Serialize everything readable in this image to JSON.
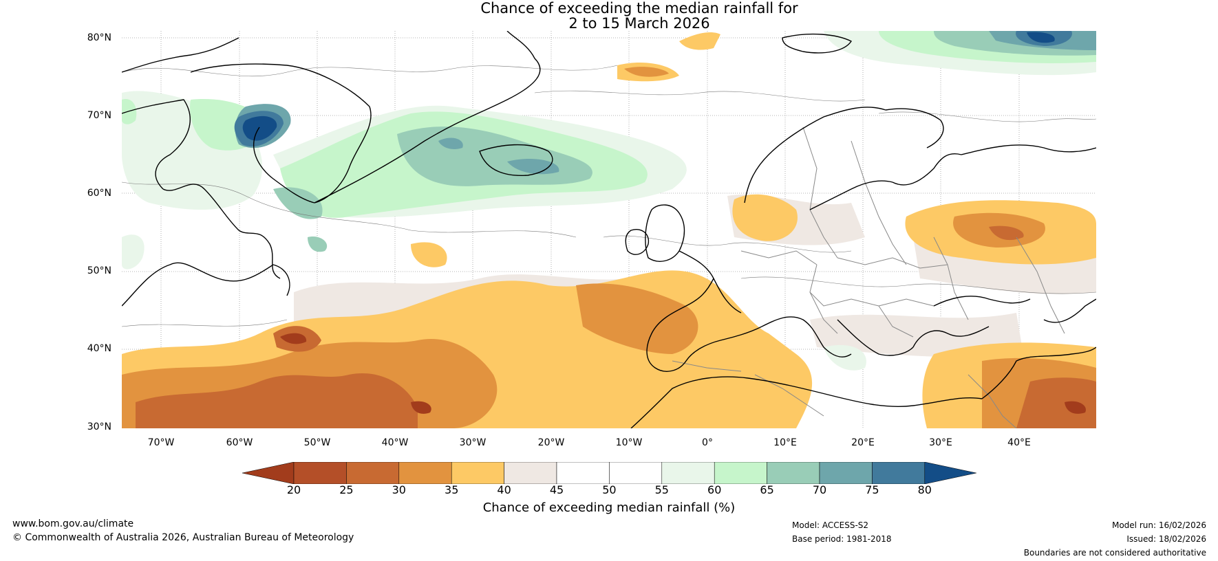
{
  "title": {
    "line1": "Chance of exceeding the median rainfall for",
    "line2": "2 to 15 March 2026"
  },
  "map": {
    "latitude_labels": [
      "80°N",
      "70°N",
      "60°N",
      "50°N",
      "40°N",
      "30°N"
    ],
    "longitude_labels": [
      "70°W",
      "60°W",
      "50°W",
      "40°W",
      "30°W",
      "20°W",
      "10°W",
      "0°",
      "10°E",
      "20°E",
      "30°E",
      "40°E"
    ],
    "colors": {
      "ocean_bg": "#ffffff",
      "coast": "#000000",
      "border": "#888888",
      "grid": "#9a9a9a"
    }
  },
  "colorbar": {
    "ticks": [
      "20",
      "25",
      "30",
      "35",
      "40",
      "45",
      "50",
      "55",
      "60",
      "65",
      "70",
      "75",
      "80"
    ],
    "colors": [
      "#a23c1c",
      "#b44f28",
      "#c86a32",
      "#e2933f",
      "#fdc965",
      "#efe8e3",
      "#ffffff",
      "#ffffff",
      "#e9f6ea",
      "#c6f5cb",
      "#99cdb7",
      "#6ea6ab",
      "#417a9c",
      "#134d87"
    ],
    "label": "Chance of exceeding median rainfall (%)"
  },
  "footer": {
    "website": "www.bom.gov.au/climate",
    "copyright": "© Commonwealth of Australia 2026, Australian Bureau of Meteorology",
    "model": "Model: ACCESS-S2",
    "base_period": "Base period: 1981-2018",
    "model_run": "Model run: 16/02/2026",
    "issued": "Issued: 18/02/2026",
    "disclaimer": "Boundaries are not considered authoritative"
  }
}
